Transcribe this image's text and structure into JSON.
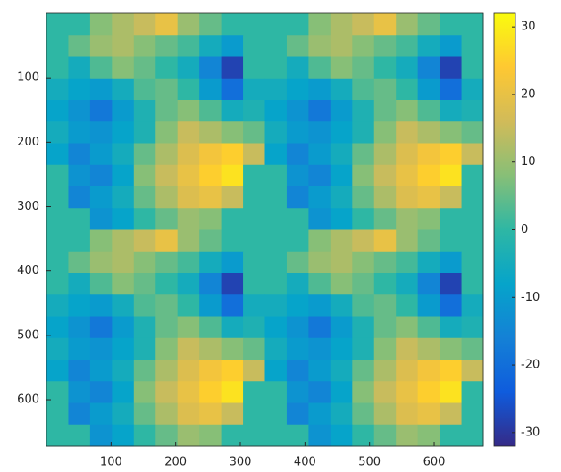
{
  "chart_data": {
    "type": "heatmap",
    "xlim": [
      0,
      676
    ],
    "ylim": [
      0,
      672
    ],
    "xticks": [
      100,
      200,
      300,
      400,
      500,
      600
    ],
    "yticks": [
      100,
      200,
      300,
      400,
      500,
      600
    ],
    "clim": [
      -32,
      32
    ],
    "cticks": [
      -30,
      -20,
      -10,
      0,
      10,
      20,
      30
    ],
    "colormap": [
      "#352a87",
      "#0f5cdd",
      "#1481d6",
      "#06a4ca",
      "#2eb7a4",
      "#87bf77",
      "#d1bb59",
      "#fec832",
      "#f9fb0e"
    ],
    "z": [
      [
        0,
        0,
        8,
        12,
        15,
        20,
        10,
        5,
        0,
        0,
        0,
        0,
        8,
        12,
        15,
        20,
        10,
        5,
        0,
        0
      ],
      [
        0,
        5,
        10,
        12,
        8,
        5,
        2,
        -5,
        -10,
        0,
        0,
        5,
        10,
        12,
        8,
        5,
        2,
        -5,
        -10,
        0
      ],
      [
        0,
        -5,
        3,
        8,
        5,
        0,
        -5,
        -15,
        -28,
        0,
        0,
        -5,
        3,
        8,
        5,
        0,
        -5,
        -15,
        -28,
        0
      ],
      [
        -5,
        -8,
        -10,
        -5,
        3,
        5,
        0,
        -10,
        -20,
        -5,
        -5,
        -8,
        -10,
        -5,
        3,
        5,
        0,
        -10,
        -20,
        -5
      ],
      [
        -8,
        -12,
        -18,
        -10,
        -3,
        5,
        8,
        3,
        -5,
        -3,
        -8,
        -12,
        -18,
        -10,
        -3,
        5,
        8,
        3,
        -5,
        -3
      ],
      [
        -5,
        -10,
        -12,
        -8,
        -3,
        8,
        15,
        12,
        8,
        5,
        -5,
        -10,
        -12,
        -8,
        -3,
        8,
        15,
        12,
        8,
        5
      ],
      [
        -8,
        -15,
        -10,
        -5,
        5,
        12,
        18,
        22,
        25,
        15,
        -8,
        -15,
        -10,
        -5,
        5,
        12,
        18,
        22,
        25,
        15
      ],
      [
        0,
        -12,
        -15,
        -8,
        8,
        15,
        20,
        25,
        28,
        0,
        0,
        -12,
        -15,
        -8,
        8,
        15,
        20,
        25,
        28,
        0
      ],
      [
        0,
        -15,
        -10,
        -5,
        5,
        12,
        18,
        20,
        15,
        0,
        0,
        -15,
        -10,
        -5,
        5,
        12,
        18,
        20,
        15,
        0
      ],
      [
        0,
        0,
        -12,
        -8,
        0,
        5,
        10,
        8,
        0,
        0,
        0,
        0,
        -12,
        -8,
        0,
        5,
        10,
        8,
        0,
        0
      ],
      [
        0,
        0,
        8,
        12,
        15,
        20,
        10,
        5,
        0,
        0,
        0,
        0,
        8,
        12,
        15,
        20,
        10,
        5,
        0,
        0
      ],
      [
        0,
        5,
        10,
        12,
        8,
        5,
        2,
        -5,
        -10,
        0,
        0,
        5,
        10,
        12,
        8,
        5,
        2,
        -5,
        -10,
        0
      ],
      [
        0,
        -5,
        3,
        8,
        5,
        0,
        -5,
        -15,
        -28,
        0,
        0,
        -5,
        3,
        8,
        5,
        0,
        -5,
        -15,
        -28,
        0
      ],
      [
        -5,
        -8,
        -10,
        -5,
        3,
        5,
        0,
        -10,
        -20,
        -5,
        -5,
        -8,
        -10,
        -5,
        3,
        5,
        0,
        -10,
        -20,
        -5
      ],
      [
        -8,
        -12,
        -18,
        -10,
        -3,
        5,
        8,
        3,
        -5,
        -3,
        -8,
        -12,
        -18,
        -10,
        -3,
        5,
        8,
        3,
        -5,
        -3
      ],
      [
        -5,
        -10,
        -12,
        -8,
        -3,
        8,
        15,
        12,
        8,
        5,
        -5,
        -10,
        -12,
        -8,
        -3,
        8,
        15,
        12,
        8,
        5
      ],
      [
        -8,
        -15,
        -10,
        -5,
        5,
        12,
        18,
        22,
        25,
        15,
        -8,
        -15,
        -10,
        -5,
        5,
        12,
        18,
        22,
        25,
        15
      ],
      [
        0,
        -12,
        -15,
        -8,
        8,
        15,
        20,
        25,
        28,
        0,
        0,
        -12,
        -15,
        -8,
        8,
        15,
        20,
        25,
        28,
        0
      ],
      [
        0,
        -15,
        -10,
        -5,
        5,
        12,
        18,
        20,
        15,
        0,
        0,
        -15,
        -10,
        -5,
        5,
        12,
        18,
        20,
        15,
        0
      ],
      [
        0,
        0,
        -12,
        -8,
        0,
        5,
        10,
        8,
        0,
        0,
        0,
        0,
        -12,
        -8,
        0,
        5,
        10,
        8,
        0,
        0
      ]
    ]
  }
}
